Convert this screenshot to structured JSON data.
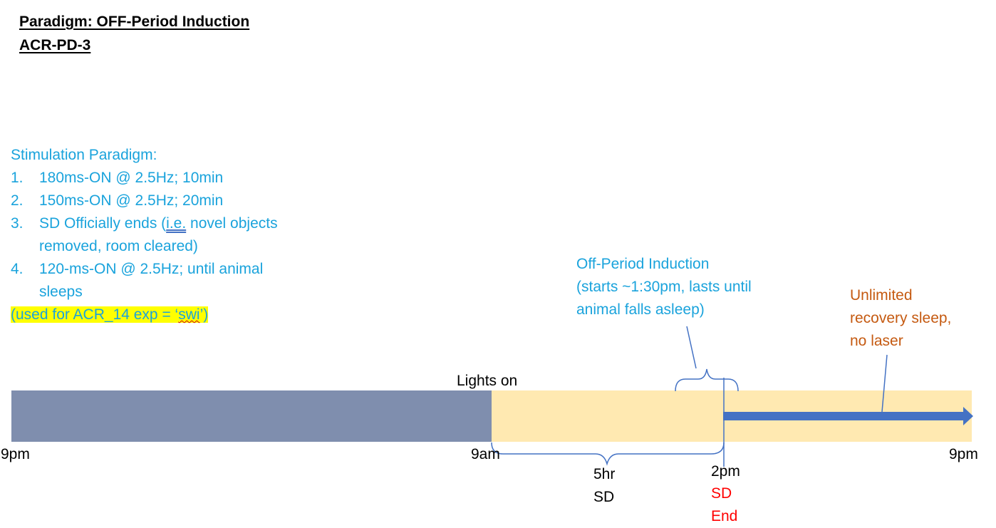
{
  "header": {
    "paradigm": "Paradigm: OFF-Period Induction",
    "code": "ACR-PD-3"
  },
  "stimulation": {
    "heading": "Stimulation Paradigm:",
    "steps": [
      {
        "num": "1.",
        "text": "180ms-ON @ 2.5Hz; 10min"
      },
      {
        "num": "2.",
        "text": "150ms-ON @ 2.5Hz; 20min"
      },
      {
        "num": "3.",
        "text_pre": "SD Officially ends (",
        "text_ie": "i.e.",
        "text_post": " novel objects",
        "text_line2": "removed, room cleared)"
      },
      {
        "num": "4.",
        "text": "120-ms-ON @ 2.5Hz; until animal",
        "text_line2": "sleeps"
      }
    ],
    "note_pre": "(used for ACR_14 exp = ‘",
    "note_word": "swi",
    "note_post": "’)"
  },
  "annotations": {
    "off_period": [
      "Off-Period Induction",
      "(starts ~1:30pm, lasts until",
      "animal falls asleep)"
    ],
    "recovery": [
      "Unlimited",
      "recovery sleep,",
      "no laser"
    ],
    "lights_on": "Lights on"
  },
  "timeline": {
    "ticks": {
      "left": "9pm",
      "middle": "9am",
      "right": "9pm",
      "sd_end_time": "2pm"
    },
    "sd_duration": [
      "5hr",
      "SD"
    ],
    "sd_end": [
      "SD",
      "End"
    ]
  },
  "colors": {
    "night": "#7f8eae",
    "day": "#ffe9b1",
    "arrow": "#4472c4",
    "cyan_text": "#1aa3dc",
    "orange_text": "#c55a11",
    "red_text": "#ff0000",
    "bracket": "#4472c4",
    "highlight": "#ffff00"
  }
}
